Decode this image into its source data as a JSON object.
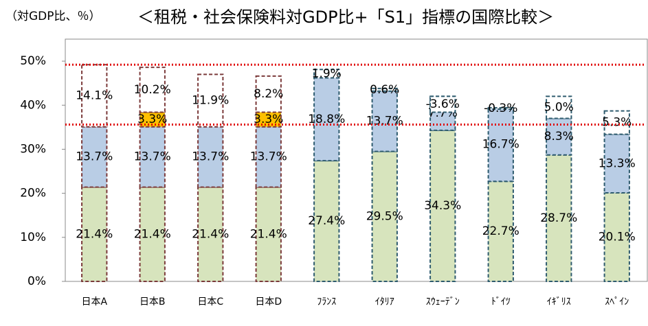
{
  "chart_data": {
    "type": "stacked_bar",
    "title": "＜租税・社会保険料対GDP比+「S1」指標の国際比較＞",
    "subtitle": "（対GDP比、％）",
    "categories": [
      "日本A",
      "日本B",
      "日本C",
      "日本D",
      "ﾌﾗﾝｽ",
      "ｲﾀﾘｱ",
      "ｽｳｪｰﾃﾞﾝ",
      "ﾄﾞｲﾂ",
      "ｲｷﾞﾘｽ",
      "ｽﾍﾟｲﾝ"
    ],
    "series": [
      {
        "color": "#d7e4bd",
        "values": [
          21.4,
          21.4,
          21.4,
          21.4,
          27.4,
          29.5,
          34.3,
          22.7,
          28.7,
          20.1
        ],
        "value_labels": [
          "21.4%",
          "21.4%",
          "21.4%",
          "21.4%",
          "27.4%",
          "29.5%",
          "34.3%",
          "22.7%",
          "28.7%",
          "20.1%"
        ]
      },
      {
        "color": "#b9cde5",
        "values": [
          13.7,
          13.7,
          13.7,
          13.7,
          18.8,
          13.7,
          7.7,
          16.7,
          8.3,
          13.3
        ],
        "value_labels": [
          "13.7%",
          "13.7%",
          "13.7%",
          "13.7%",
          "18.8%",
          "13.7%",
          "7.7%",
          "16.7%",
          "8.3%",
          "13.3%"
        ]
      },
      {
        "color": "#ffc000",
        "values": [
          null,
          3.3,
          null,
          3.3,
          null,
          null,
          null,
          null,
          null,
          null
        ],
        "value_labels": [
          null,
          "3.3%",
          null,
          "3.3%",
          null,
          null,
          null,
          null,
          null,
          null
        ]
      },
      {
        "color": "#ffffff",
        "values": [
          14.1,
          10.2,
          11.9,
          8.2,
          1.9,
          0.6,
          -3.6,
          -0.3,
          5.0,
          5.3
        ],
        "value_labels": [
          "14.1%",
          "10.2%",
          "11.9%",
          "8.2%",
          "1.9%",
          "0.6%",
          "-3.6%",
          "-0.3%",
          "5.0%",
          "5.3%"
        ]
      }
    ],
    "outline_colors": [
      "#7b3a3a",
      "#7b3a3a",
      "#7b3a3a",
      "#7b3a3a",
      "#2e5b6e",
      "#2e5b6e",
      "#2e5b6e",
      "#2e5b6e",
      "#2e5b6e",
      "#2e5b6e"
    ],
    "reference_lines": [
      49.2,
      35.6
    ],
    "reference_color": "#e00000",
    "ylim": [
      0,
      55
    ],
    "yticks": [
      {
        "value": 0,
        "label": "0%"
      },
      {
        "value": 10,
        "label": "10%"
      },
      {
        "value": 20,
        "label": "20%"
      },
      {
        "value": 30,
        "label": "30%"
      },
      {
        "value": 40,
        "label": "40%"
      },
      {
        "value": 50,
        "label": "50%"
      }
    ],
    "grid": false
  }
}
